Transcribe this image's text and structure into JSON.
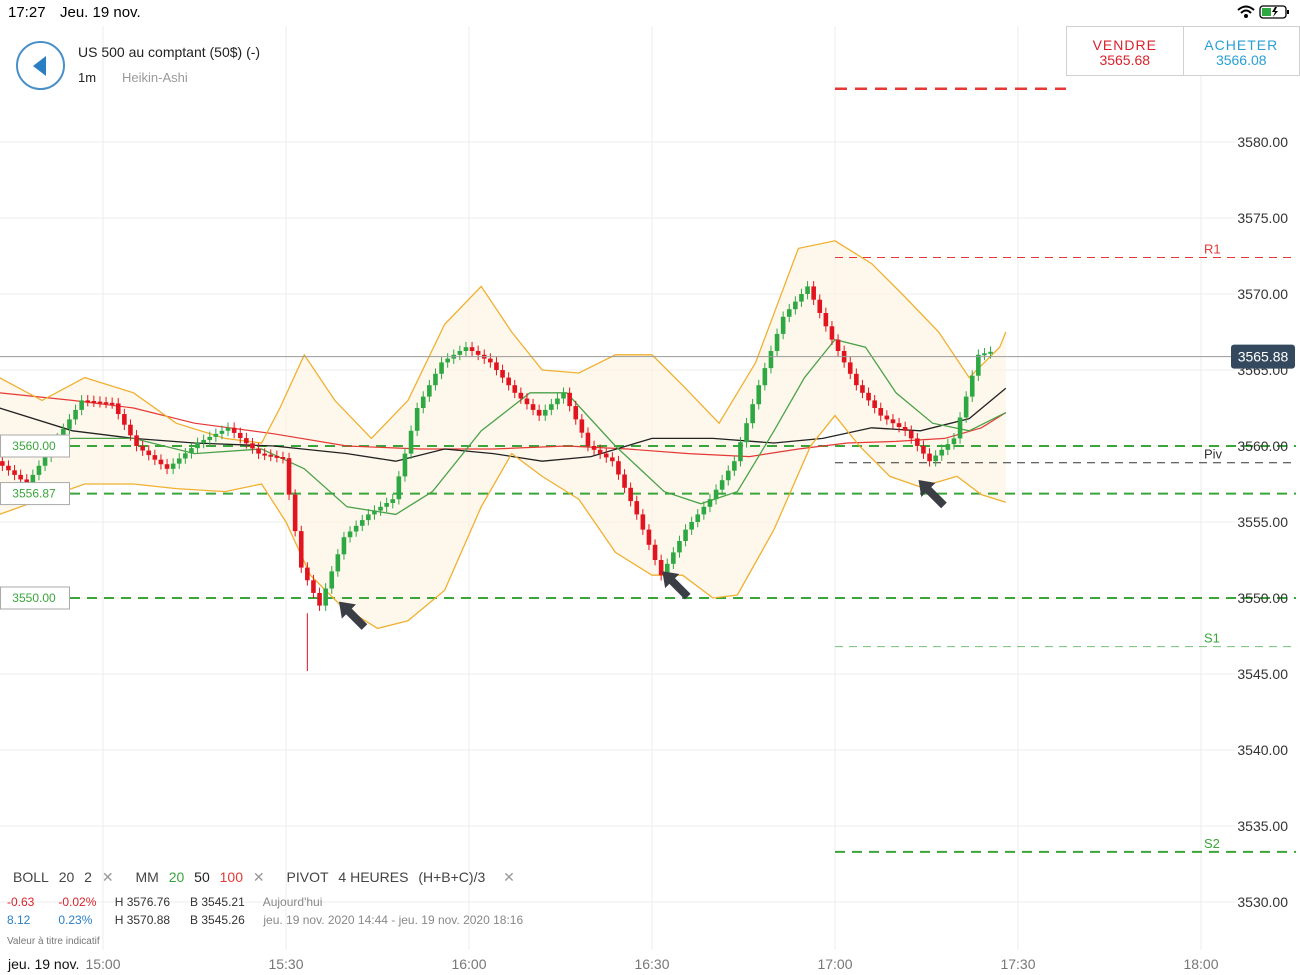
{
  "status": {
    "time": "17:27",
    "date": "Jeu. 19 nov."
  },
  "header": {
    "title": "US 500 au comptant (50$) (-)",
    "timeframe": "1m",
    "chart_type": "Heikin-Ashi"
  },
  "trade": {
    "sell_label": "VENDRE",
    "sell_price": "3565.68",
    "buy_label": "ACHETER",
    "buy_price": "3566.08"
  },
  "colors": {
    "up": "#2ea843",
    "down": "#e2141f",
    "accent": "#4a90c8",
    "pivot_green": "#3aa53a",
    "pivot_red": "#e53935",
    "band": "#f0b030"
  },
  "chart_data": {
    "type": "candlestick",
    "ylim": [
      3527.5,
      3587.5
    ],
    "y_ticks": [
      "3580.00",
      "3575.00",
      "3570.00",
      "3565.00",
      "3560.00",
      "3555.00",
      "3550.00",
      "3545.00",
      "3540.00",
      "3535.00",
      "3530.00"
    ],
    "x_ticks": [
      "15:00",
      "15:30",
      "16:00",
      "16:30",
      "17:00",
      "17:30",
      "18:00"
    ],
    "x_tick_minutes": [
      0,
      30,
      60,
      90,
      120,
      150,
      180
    ],
    "last_price": "3565.88",
    "last_price_value": 3565.88,
    "left_labels": [
      {
        "text": "3560.00",
        "value": 3560.0
      },
      {
        "text": "3556.87",
        "value": 3556.87
      },
      {
        "text": "3550.00",
        "value": 3550.0
      }
    ],
    "horizontal_levels": [
      {
        "value": 3560.0,
        "color": "green",
        "from_minute": -17
      },
      {
        "value": 3556.87,
        "color": "green",
        "from_minute": -17
      },
      {
        "value": 3550.0,
        "color": "green",
        "from_minute": -17
      }
    ],
    "pivots": [
      {
        "name": "R1",
        "value": 3572.4,
        "color": "red"
      },
      {
        "name": "Piv",
        "value": 3558.9,
        "color": "black"
      },
      {
        "name": "S1",
        "value": 3546.8,
        "color": "green"
      },
      {
        "name": "S2",
        "value": 3533.3,
        "color": "green"
      }
    ],
    "top_level": {
      "value": 3583.5,
      "color": "red"
    },
    "candle_anchors": [
      [
        -17,
        3559.0
      ],
      [
        -12,
        3557.5
      ],
      [
        -7,
        3560.5
      ],
      [
        -3,
        3563.0
      ],
      [
        2,
        3562.8
      ],
      [
        6,
        3560.0
      ],
      [
        11,
        3558.5
      ],
      [
        16,
        3560.2
      ],
      [
        21,
        3561.2
      ],
      [
        26,
        3559.5
      ],
      [
        30,
        3559.2
      ],
      [
        33,
        3552.0
      ],
      [
        36,
        3549.5
      ],
      [
        40,
        3554.0
      ],
      [
        44,
        3555.5
      ],
      [
        48,
        3556.5
      ],
      [
        52,
        3562.5
      ],
      [
        56,
        3565.5
      ],
      [
        60,
        3566.5
      ],
      [
        64,
        3565.5
      ],
      [
        68,
        3563.5
      ],
      [
        72,
        3562.0
      ],
      [
        76,
        3563.5
      ],
      [
        80,
        3560.0
      ],
      [
        84,
        3559.0
      ],
      [
        88,
        3555.5
      ],
      [
        92,
        3551.5
      ],
      [
        96,
        3554.5
      ],
      [
        100,
        3556.5
      ],
      [
        104,
        3559.0
      ],
      [
        108,
        3564.0
      ],
      [
        112,
        3568.5
      ],
      [
        116,
        3570.5
      ],
      [
        120,
        3567.0
      ],
      [
        124,
        3564.0
      ],
      [
        128,
        3562.0
      ],
      [
        132,
        3561.0
      ],
      [
        136,
        3559.0
      ],
      [
        140,
        3560.5
      ],
      [
        144,
        3566.0
      ],
      [
        146,
        3566.2
      ]
    ],
    "bollinger_upper": [
      [
        -17,
        3564.5
      ],
      [
        -10,
        3563.0
      ],
      [
        -3,
        3564.5
      ],
      [
        5,
        3563.5
      ],
      [
        12,
        3561.5
      ],
      [
        20,
        3560.5
      ],
      [
        26,
        3560.2
      ],
      [
        29,
        3562.5
      ],
      [
        33,
        3566.0
      ],
      [
        38,
        3563.0
      ],
      [
        44,
        3560.5
      ],
      [
        50,
        3563.0
      ],
      [
        56,
        3568.0
      ],
      [
        62,
        3570.5
      ],
      [
        67,
        3567.5
      ],
      [
        72,
        3565.0
      ],
      [
        78,
        3564.8
      ],
      [
        84,
        3566.0
      ],
      [
        90,
        3566.0
      ],
      [
        95,
        3564.0
      ],
      [
        101,
        3561.5
      ],
      [
        107,
        3565.5
      ],
      [
        114,
        3573.0
      ],
      [
        120,
        3573.5
      ],
      [
        126,
        3572.0
      ],
      [
        131,
        3570.0
      ],
      [
        137,
        3567.5
      ],
      [
        142,
        3564.5
      ],
      [
        147,
        3566.5
      ],
      [
        148,
        3567.5
      ]
    ],
    "bollinger_lower": [
      [
        -17,
        3555.5
      ],
      [
        -10,
        3556.5
      ],
      [
        -3,
        3557.5
      ],
      [
        5,
        3557.5
      ],
      [
        12,
        3557.2
      ],
      [
        20,
        3557.0
      ],
      [
        26,
        3557.5
      ],
      [
        30,
        3555.0
      ],
      [
        34,
        3551.5
      ],
      [
        39,
        3549.5
      ],
      [
        45,
        3548.0
      ],
      [
        50,
        3548.5
      ],
      [
        56,
        3550.5
      ],
      [
        62,
        3556.0
      ],
      [
        67,
        3559.5
      ],
      [
        72,
        3558.0
      ],
      [
        78,
        3556.5
      ],
      [
        84,
        3553.0
      ],
      [
        90,
        3551.5
      ],
      [
        95,
        3551.5
      ],
      [
        100,
        3550.0
      ],
      [
        104,
        3550.2
      ],
      [
        110,
        3554.5
      ],
      [
        116,
        3560.0
      ],
      [
        120,
        3562.0
      ],
      [
        124,
        3560.0
      ],
      [
        129,
        3558.0
      ],
      [
        134,
        3557.3
      ],
      [
        140,
        3558.0
      ],
      [
        144,
        3556.8
      ],
      [
        148,
        3556.3
      ]
    ],
    "bollinger_mid": [
      [
        -17,
        3560.0
      ],
      [
        -5,
        3560.5
      ],
      [
        5,
        3560.5
      ],
      [
        15,
        3559.5
      ],
      [
        26,
        3559.8
      ],
      [
        33,
        3558.5
      ],
      [
        40,
        3556.0
      ],
      [
        48,
        3555.5
      ],
      [
        54,
        3557.0
      ],
      [
        62,
        3561.0
      ],
      [
        70,
        3563.5
      ],
      [
        76,
        3563.5
      ],
      [
        84,
        3560.0
      ],
      [
        92,
        3557.0
      ],
      [
        98,
        3556.2
      ],
      [
        104,
        3557.0
      ],
      [
        110,
        3561.0
      ],
      [
        115,
        3564.5
      ],
      [
        120,
        3567.0
      ],
      [
        125,
        3566.5
      ],
      [
        130,
        3563.5
      ],
      [
        136,
        3561.5
      ],
      [
        142,
        3561.0
      ],
      [
        148,
        3562.2
      ]
    ],
    "ma_black": [
      [
        -17,
        3562.5
      ],
      [
        -5,
        3561.0
      ],
      [
        5,
        3560.5
      ],
      [
        15,
        3560.2
      ],
      [
        28,
        3560.0
      ],
      [
        40,
        3559.5
      ],
      [
        48,
        3559.0
      ],
      [
        56,
        3559.8
      ],
      [
        64,
        3559.5
      ],
      [
        72,
        3559.0
      ],
      [
        80,
        3559.3
      ],
      [
        90,
        3560.5
      ],
      [
        100,
        3560.5
      ],
      [
        110,
        3560.2
      ],
      [
        118,
        3560.5
      ],
      [
        126,
        3561.2
      ],
      [
        134,
        3561.0
      ],
      [
        142,
        3561.8
      ],
      [
        148,
        3563.8
      ]
    ],
    "ma_red": [
      [
        -17,
        3563.5
      ],
      [
        -5,
        3563.0
      ],
      [
        5,
        3562.5
      ],
      [
        15,
        3561.5
      ],
      [
        28,
        3560.8
      ],
      [
        40,
        3560.0
      ],
      [
        52,
        3559.8
      ],
      [
        64,
        3559.8
      ],
      [
        76,
        3560.0
      ],
      [
        86,
        3559.8
      ],
      [
        96,
        3559.5
      ],
      [
        106,
        3559.3
      ],
      [
        114,
        3559.8
      ],
      [
        122,
        3560.2
      ],
      [
        130,
        3560.3
      ],
      [
        138,
        3560.5
      ],
      [
        144,
        3561.2
      ],
      [
        148,
        3562.2
      ]
    ],
    "arrows_minutes": [
      [
        40,
        3549.5
      ],
      [
        93,
        3551.5
      ],
      [
        135,
        3557.5
      ]
    ]
  },
  "legend": {
    "boll_label": "BOLL",
    "boll_p1": "20",
    "boll_p2": "2",
    "close": "✕",
    "mm_label": "MM",
    "mm_20": "20",
    "mm_50": "50",
    "mm_100": "100",
    "pivot_label": "PIVOT",
    "pivot_period": "4 HEURES",
    "pivot_formula": "(H+B+C)/3"
  },
  "stats": {
    "row1_change": "-0.63",
    "row1_pct": "-0.02%",
    "row1_high": "H 3576.76",
    "row1_low": "B 3545.21",
    "row1_period": "Aujourd'hui",
    "row2_change": "8.12",
    "row2_pct": "0.23%",
    "row2_high": "H 3570.88",
    "row2_low": "B 3545.26",
    "row2_period": "jeu. 19 nov. 2020 14:44 - jeu. 19 nov. 2020 18:16"
  },
  "disclaimer": "Valeur à titre indicatif",
  "bottom_date": "jeu. 19 nov."
}
